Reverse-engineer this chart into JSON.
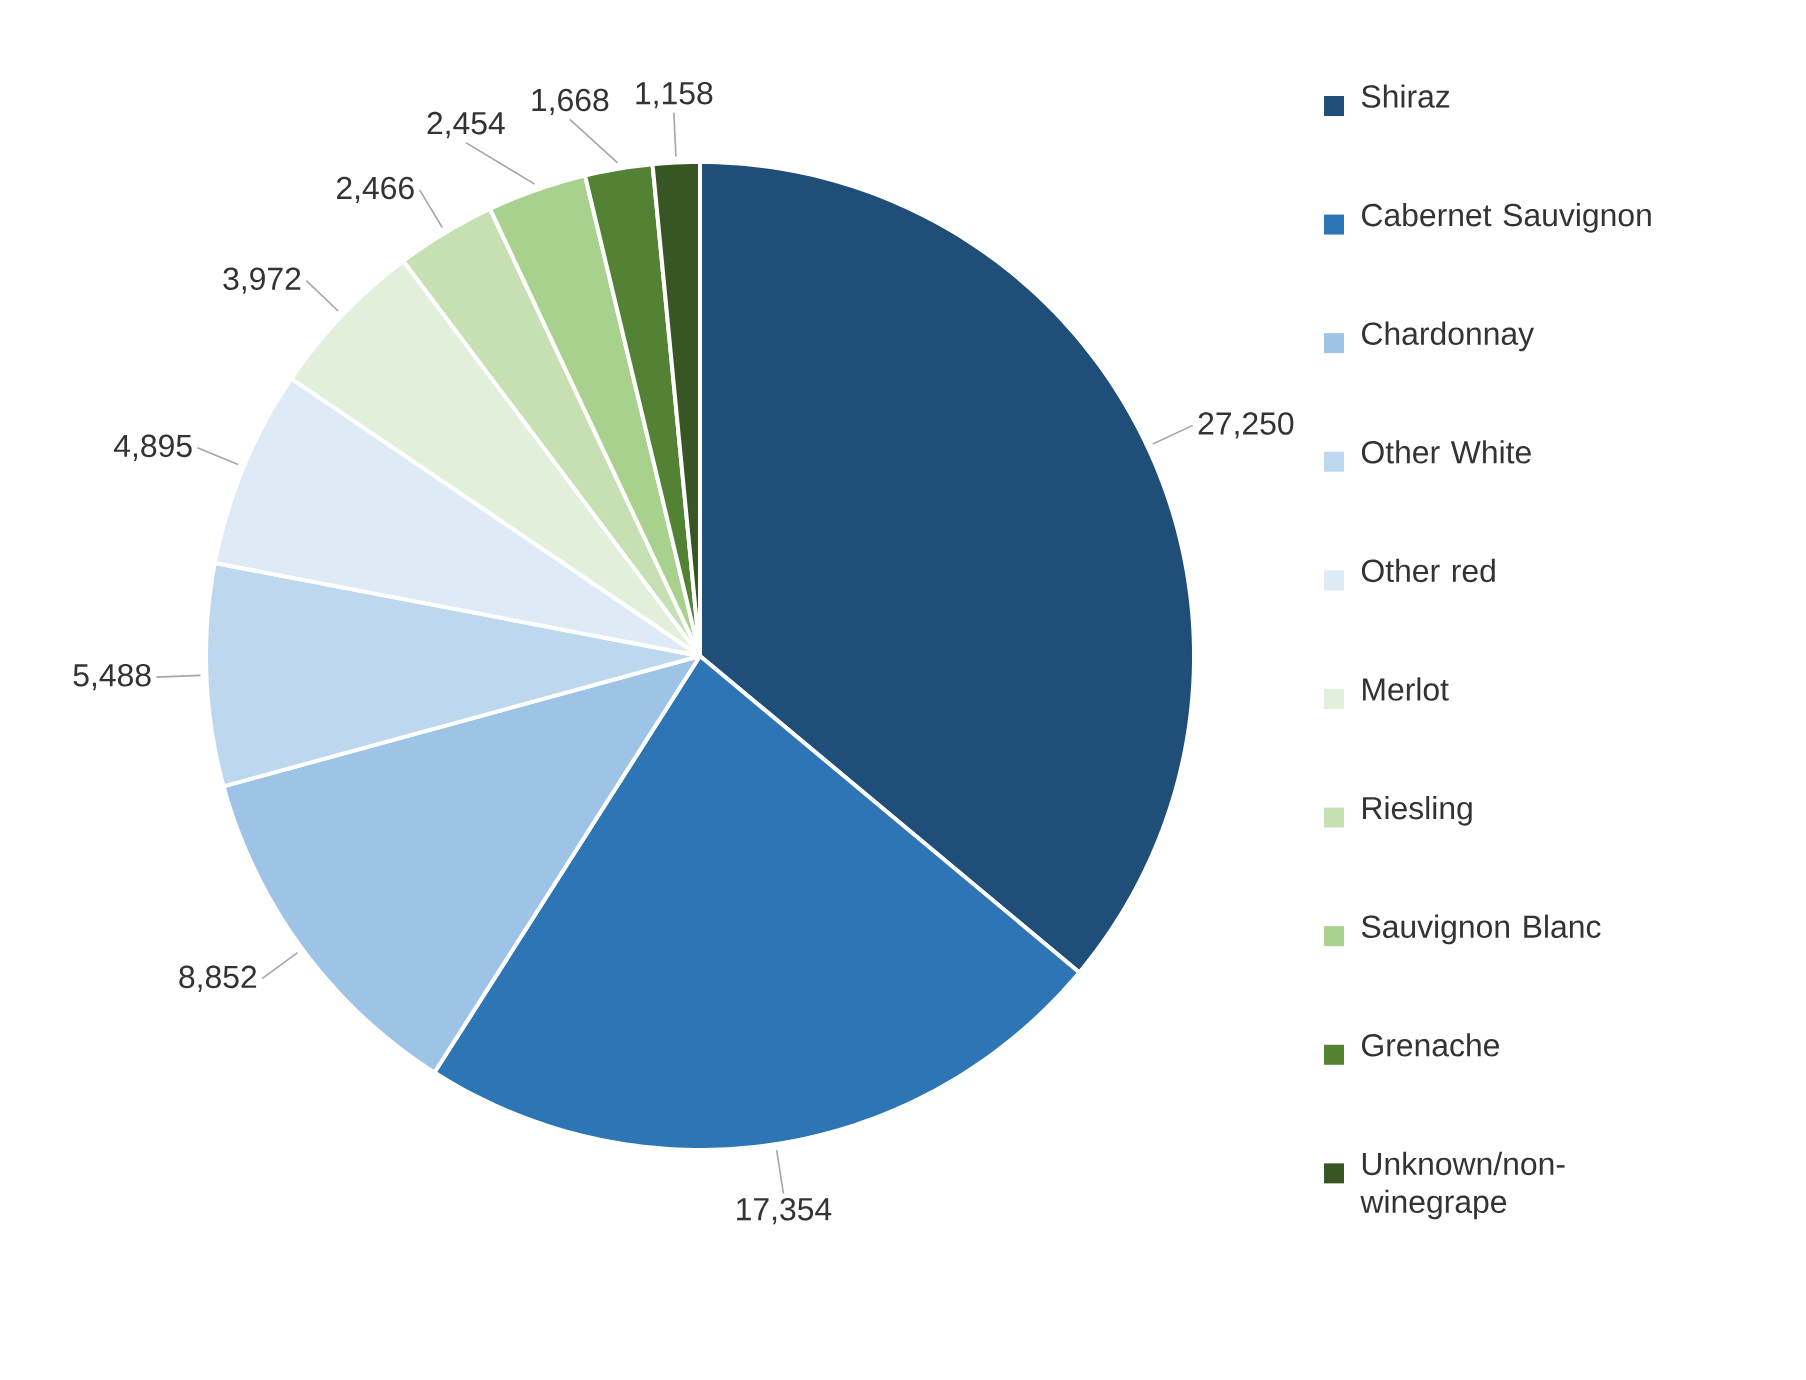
{
  "chart_data": {
    "type": "pie",
    "categories": [
      "Shiraz",
      "Cabernet Sauvignon",
      "Chardonnay",
      "Other White",
      "Other red",
      "Merlot",
      "Riesling",
      "Sauvignon Blanc",
      "Grenache",
      "Unknown/non-winegrape"
    ],
    "values": [
      27250,
      17354,
      8852,
      5488,
      4895,
      3972,
      2466,
      2454,
      1668,
      1158
    ],
    "colors": [
      "#1f4e79",
      "#2e75b6",
      "#9dc3e6",
      "#bdd7ee",
      "#deebf7",
      "#e2efda",
      "#c6e0b4",
      "#a9d18e",
      "#548235",
      "#375623"
    ],
    "value_labels": [
      "27,250",
      "17,354",
      "8,852",
      "5,488",
      "4,895",
      "3,972",
      "2,466",
      "2,454",
      "1,668",
      "1,158"
    ],
    "legend": "right"
  }
}
